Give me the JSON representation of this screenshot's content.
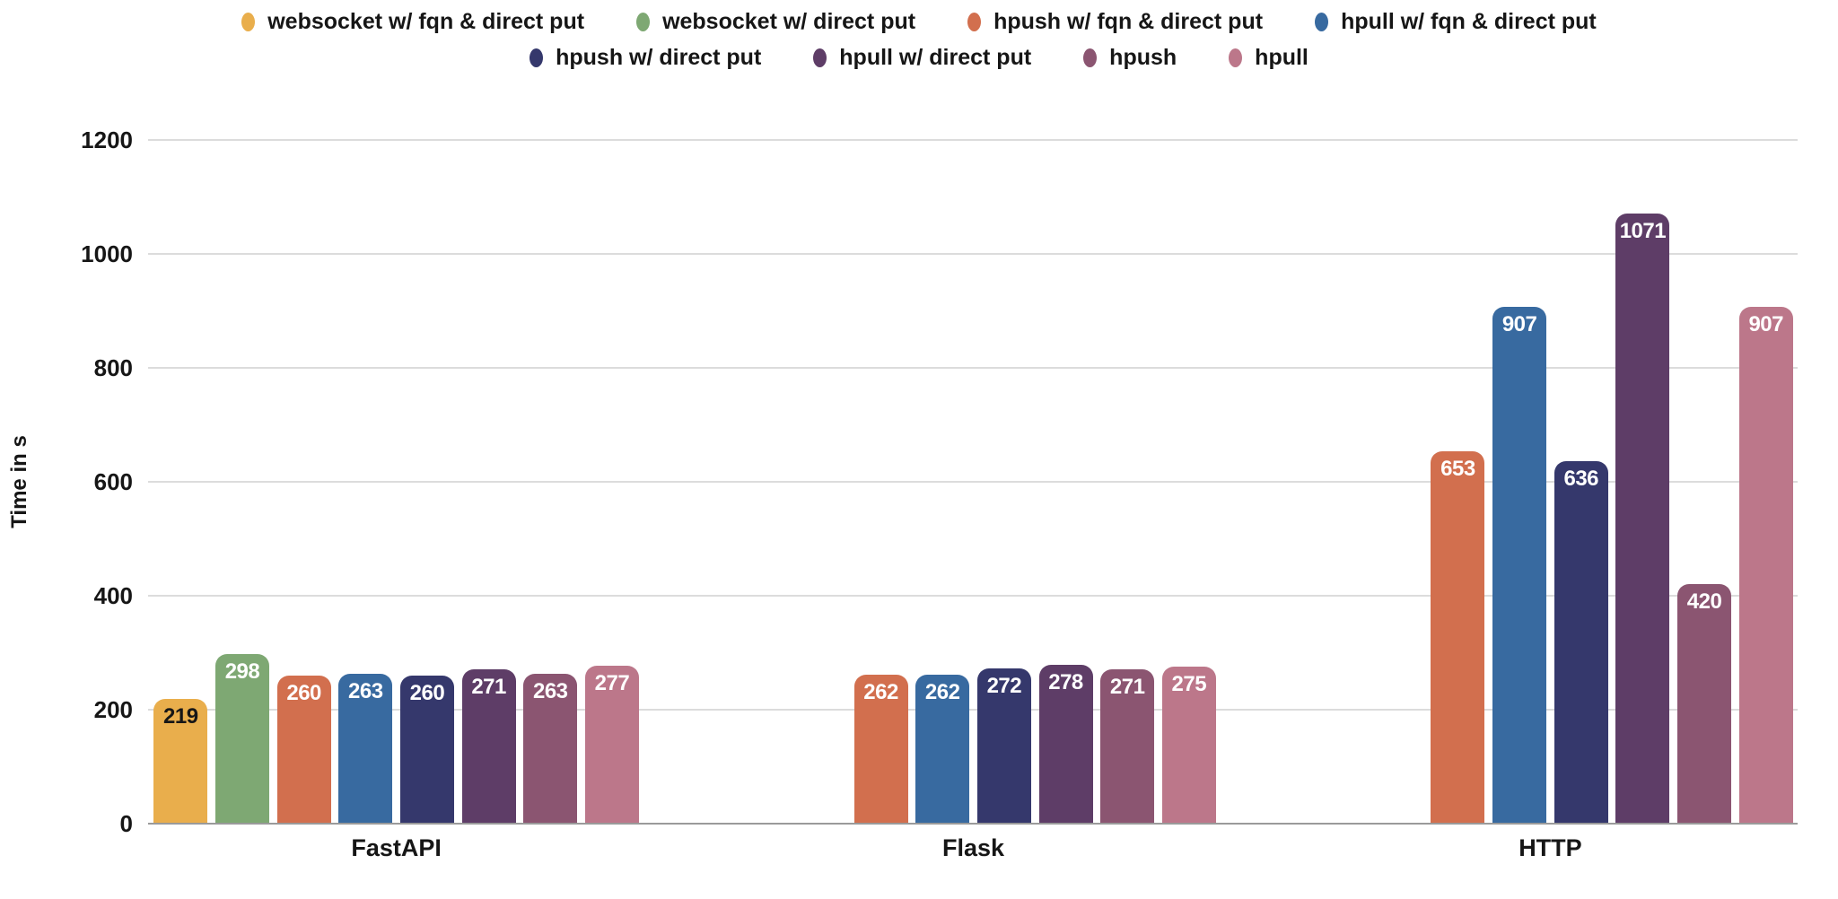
{
  "chart_data": {
    "type": "bar",
    "title": "",
    "xlabel": "",
    "ylabel": "Time in s",
    "ylim": [
      0,
      1200
    ],
    "yticks": [
      0,
      200,
      400,
      600,
      800,
      1000,
      1200
    ],
    "grid": true,
    "legend_position": "top",
    "value_labels": "inside-top",
    "categories": [
      "FastAPI",
      "Flask",
      "HTTP"
    ],
    "series": [
      {
        "name": "websocket w/ fqn & direct put",
        "color": "#E9AE4C",
        "label_color": "#161616",
        "values": [
          219,
          null,
          null
        ]
      },
      {
        "name": "websocket w/ direct put",
        "color": "#7EA873",
        "values": [
          298,
          null,
          null
        ]
      },
      {
        "name": "hpush w/ fqn & direct put",
        "color": "#D26F4E",
        "values": [
          260,
          262,
          653
        ]
      },
      {
        "name": "hpull w/ fqn & direct put",
        "color": "#386AA0",
        "values": [
          263,
          262,
          907
        ]
      },
      {
        "name": "hpush w/ direct put",
        "color": "#35386C",
        "values": [
          260,
          272,
          636
        ]
      },
      {
        "name": "hpull w/ direct put",
        "color": "#5E3D67",
        "values": [
          271,
          278,
          1071
        ]
      },
      {
        "name": "hpush",
        "color": "#8B5571",
        "values": [
          263,
          271,
          420
        ]
      },
      {
        "name": "hpull",
        "color": "#BC778A",
        "values": [
          277,
          275,
          907
        ]
      }
    ]
  },
  "colors": {
    "background": "#ffffff",
    "gridline": "#dcdcdc",
    "baseline": "#9a9a9a",
    "text": "#161616",
    "value_label_default": "#ffffff"
  }
}
